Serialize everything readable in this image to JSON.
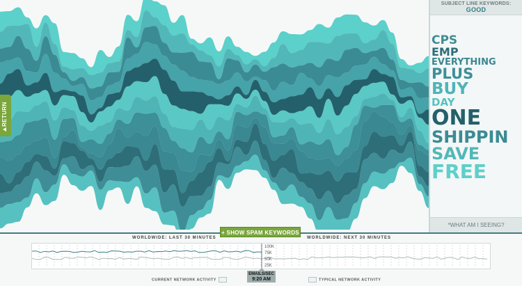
{
  "sidebar": {
    "heading": "SUBJECT LINE KEYWORDS:",
    "category": "GOOD",
    "footer": "*WHAT AM I SEEING?",
    "keywords": [
      {
        "text": "CPS",
        "size": 17,
        "color": "#3f8d96"
      },
      {
        "text": "EMP",
        "size": 16,
        "color": "#2d6e78"
      },
      {
        "text": "EVERYTHING",
        "size": 13,
        "color": "#3a8891"
      },
      {
        "text": "PLUS",
        "size": 21,
        "color": "#3d8f98"
      },
      {
        "text": "BUY",
        "size": 23,
        "color": "#4fb4b6"
      },
      {
        "text": "DAY",
        "size": 15,
        "color": "#55c3c2"
      },
      {
        "text": "ONE",
        "size": 30,
        "color": "#24606b"
      },
      {
        "text": "SHIPPIN",
        "size": 24,
        "color": "#3b8b94"
      },
      {
        "text": "SAVE",
        "size": 24,
        "color": "#52b7b8"
      },
      {
        "text": "FREE",
        "size": 28,
        "color": "#5ecfca"
      }
    ]
  },
  "return_label": "RETURN",
  "show_spam_label": "+ SHOW SPAM KEYWORDS",
  "worldwide_last": "WORLDWIDE: LAST 30 MINUTES",
  "worldwide_next": "WORLDWIDE: NEXT 30 MINUTES",
  "scale": [
    "100K",
    "75K",
    "50K",
    "25K"
  ],
  "emails_label": "EMAILS/SEC",
  "emails_time": "9:20 AM",
  "legend_current": "CURRENT NETWORK ACTIVITY",
  "legend_typical": "TYPICAL NETWORK ACTIVITY",
  "stream_colors": [
    "#5cd0ca",
    "#52b7b8",
    "#3b8b94",
    "#45a3a9",
    "#24606b",
    "#5ac8c5",
    "#4fb4b6",
    "#3d8f98",
    "#3a8891",
    "#2d6e78",
    "#3f8d96",
    "#56c1c0"
  ]
}
